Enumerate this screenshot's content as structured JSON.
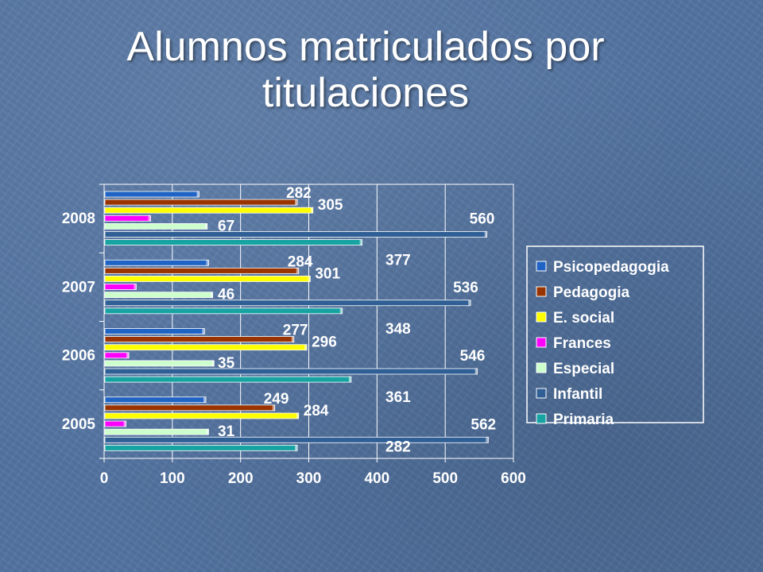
{
  "slide": {
    "title_line1": "Alumnos matriculados por",
    "title_line2": "titulaciones"
  },
  "chart_data": {
    "type": "bar",
    "orientation": "horizontal",
    "title": "Alumnos matriculados por titulaciones",
    "categories": [
      "2008",
      "2007",
      "2006",
      "2005"
    ],
    "series": [
      {
        "name": "Psicopedagogia",
        "color": "#1f63c4",
        "values": [
          138,
          152,
          146,
          148
        ]
      },
      {
        "name": "Pedagogia",
        "color": "#993300",
        "values": [
          282,
          284,
          277,
          249
        ]
      },
      {
        "name": "E. social",
        "color": "#ffff00",
        "values": [
          305,
          301,
          296,
          284
        ]
      },
      {
        "name": "Frances",
        "color": "#ff00ff",
        "values": [
          67,
          46,
          35,
          31
        ]
      },
      {
        "name": "Especial",
        "color": "#ccffcc",
        "values": [
          150,
          158,
          160,
          152
        ]
      },
      {
        "name": "Infantil",
        "color": "#2f5f95",
        "values": [
          560,
          536,
          546,
          562
        ]
      },
      {
        "name": "Primaria",
        "color": "#18a3a3",
        "values": [
          377,
          348,
          361,
          282
        ]
      }
    ],
    "data_labels": [
      {
        "category": "2008",
        "series": "Pedagogia",
        "value": 282
      },
      {
        "category": "2008",
        "series": "E. social",
        "value": 305
      },
      {
        "category": "2008",
        "series": "Frances",
        "value": 67
      },
      {
        "category": "2008",
        "series": "Infantil",
        "value": 560
      },
      {
        "category": "2008",
        "series": "Primaria",
        "value": 377
      },
      {
        "category": "2007",
        "series": "Pedagogia",
        "value": 284
      },
      {
        "category": "2007",
        "series": "E. social",
        "value": 301
      },
      {
        "category": "2007",
        "series": "Frances",
        "value": 46
      },
      {
        "category": "2007",
        "series": "Infantil",
        "value": 536
      },
      {
        "category": "2007",
        "series": "Primaria",
        "value": 348
      },
      {
        "category": "2006",
        "series": "Pedagogia",
        "value": 277
      },
      {
        "category": "2006",
        "series": "E. social",
        "value": 296
      },
      {
        "category": "2006",
        "series": "Frances",
        "value": 35
      },
      {
        "category": "2006",
        "series": "Infantil",
        "value": 546
      },
      {
        "category": "2006",
        "series": "Primaria",
        "value": 361
      },
      {
        "category": "2005",
        "series": "Pedagogia",
        "value": 249
      },
      {
        "category": "2005",
        "series": "E. social",
        "value": 284
      },
      {
        "category": "2005",
        "series": "Frances",
        "value": 31
      },
      {
        "category": "2005",
        "series": "Infantil",
        "value": 562
      },
      {
        "category": "2005",
        "series": "Primaria",
        "value": 282
      }
    ],
    "x_ticks": [
      "0",
      "100",
      "200",
      "300",
      "400",
      "500",
      "600"
    ],
    "xlim": [
      0,
      600
    ],
    "grid": true,
    "legend_position": "right"
  }
}
